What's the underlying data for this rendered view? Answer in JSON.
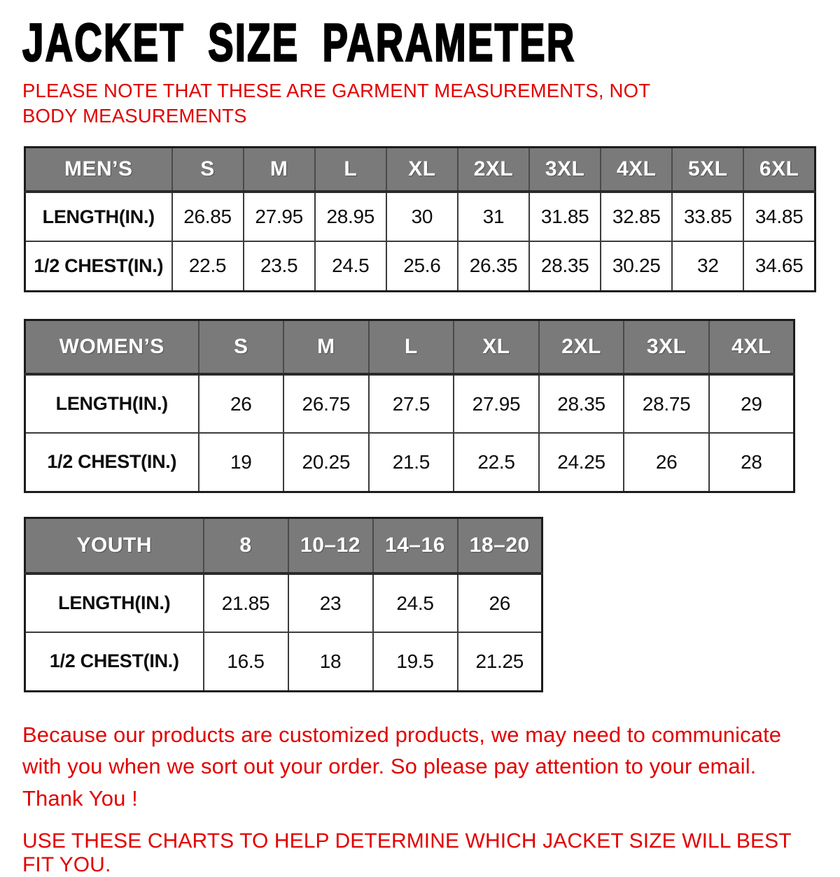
{
  "title": "JACKET SIZE PARAMETER",
  "note": "PLEASE NOTE THAT THESE ARE GARMENT MEASUREMENTS, NOT BODY MEASUREMENTS",
  "tables": [
    {
      "name": "MEN’S",
      "sizes": [
        "S",
        "M",
        "L",
        "XL",
        "2XL",
        "3XL",
        "4XL",
        "5XL",
        "6XL"
      ],
      "rows": [
        {
          "label": "LENGTH(IN.)",
          "values": [
            "26.85",
            "27.95",
            "28.95",
            "30",
            "31",
            "31.85",
            "32.85",
            "33.85",
            "34.85"
          ]
        },
        {
          "label": "1/2 CHEST(IN.)",
          "values": [
            "22.5",
            "23.5",
            "24.5",
            "25.6",
            "26.35",
            "28.35",
            "30.25",
            "32",
            "34.65"
          ]
        }
      ]
    },
    {
      "name": "WOMEN’S",
      "sizes": [
        "S",
        "M",
        "L",
        "XL",
        "2XL",
        "3XL",
        "4XL"
      ],
      "rows": [
        {
          "label": "LENGTH(IN.)",
          "values": [
            "26",
            "26.75",
            "27.5",
            "27.95",
            "28.35",
            "28.75",
            "29"
          ]
        },
        {
          "label": "1/2 CHEST(IN.)",
          "values": [
            "19",
            "20.25",
            "21.5",
            "22.5",
            "24.25",
            "26",
            "28"
          ]
        }
      ]
    },
    {
      "name": "YOUTH",
      "sizes": [
        "8",
        "10–12",
        "14–16",
        "18–20"
      ],
      "rows": [
        {
          "label": "LENGTH(IN.)",
          "values": [
            "21.85",
            "23",
            "24.5",
            "26"
          ]
        },
        {
          "label": "1/2 CHEST(IN.)",
          "values": [
            "16.5",
            "18",
            "19.5",
            "21.25"
          ]
        }
      ]
    }
  ],
  "footer": {
    "line1": "Because our products are customized products, we may need to communicate with you when we sort out your order. So please pay attention to your email. Thank You !",
    "line2": "USE THESE CHARTS TO HELP DETERMINE WHICH JACKET SIZE WILL BEST FIT YOU."
  },
  "colors": {
    "accent_red": "#e20000",
    "header_bg": "#7a7a7a",
    "table_border": "#1c1c1c"
  }
}
